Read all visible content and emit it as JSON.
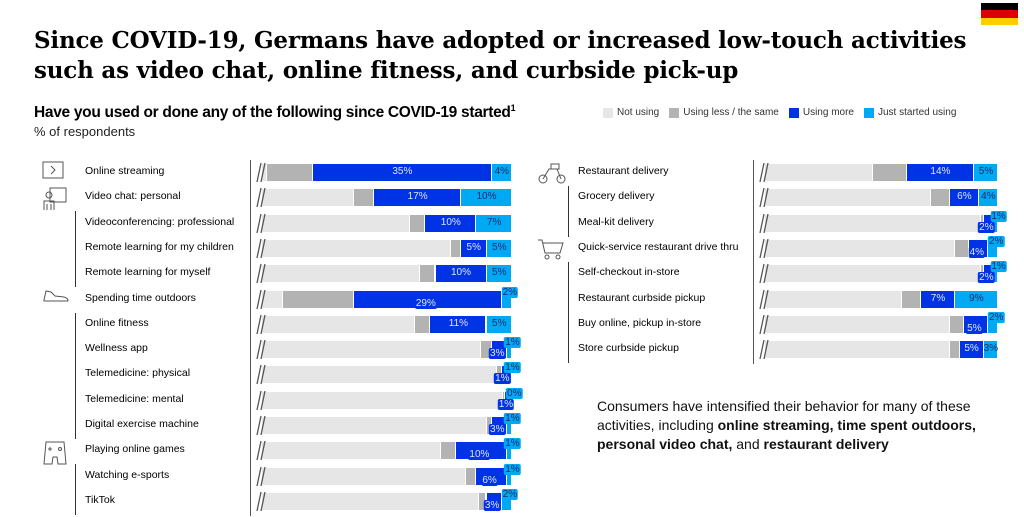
{
  "title": "Since COVID-19, Germans have adopted or increased low-touch activities such as video chat, online fitness, and curbside pick-up",
  "question": "Have you used or done any of the following since COVID-19 started",
  "question_footnote": "1",
  "unit": "% of respondents",
  "colors": {
    "not_using": "#e6e6e6",
    "less": "#b3b3b3",
    "more": "#0033e6",
    "just": "#00a9f4"
  },
  "legend": [
    {
      "key": "not_using",
      "label": "Not using"
    },
    {
      "key": "less",
      "label": "Using less / the same"
    },
    {
      "key": "more",
      "label": "Using more"
    },
    {
      "key": "just",
      "label": "Just started using"
    }
  ],
  "note": {
    "text": "Consumers have intensified their behavior for many of these activities, including ",
    "bold1": "online streaming, time spent outdoors, personal video chat,",
    "mid": " and ",
    "bold2": "restaurant delivery"
  },
  "chart_data": [
    {
      "type": "bar",
      "orientation": "horizontal-stacked",
      "series_keys": [
        "not_using",
        "less",
        "more",
        "just"
      ],
      "categories": [
        "Online streaming",
        "Video chat: personal",
        "Videoconferencing: professional",
        "Remote learning for my children",
        "Remote learning for myself",
        "Spending time outdoors",
        "Online fitness",
        "Wellness app",
        "Telemedicine: physical",
        "Telemedicine: mental",
        "Digital exercise machine",
        "Playing online games",
        "Watching e-sports",
        "TikTok"
      ],
      "more": [
        35,
        17,
        10,
        5,
        10,
        29,
        11,
        3,
        1,
        1,
        3,
        10,
        6,
        3
      ],
      "just": [
        4,
        10,
        7,
        5,
        5,
        2,
        5,
        1,
        1,
        0,
        1,
        1,
        1,
        2
      ],
      "less": [
        9,
        4,
        3,
        2,
        3,
        14,
        3,
        2,
        1,
        0.5,
        1,
        3,
        2,
        1.5
      ],
      "more_labels": [
        "35%",
        "17%",
        "10%",
        "5%",
        "10%",
        "29%",
        "11%",
        "3%",
        "1%",
        "1%",
        "3%",
        "10%",
        "6%",
        "3%"
      ],
      "just_labels": [
        "4%",
        "10%",
        "7%",
        "5%",
        "5%",
        "2%",
        "5%",
        "1%",
        "1%",
        "0%",
        "1%",
        "1%",
        "1%",
        "2%"
      ],
      "groups": [
        {
          "icon": "play-icon",
          "start": 0
        },
        {
          "icon": "video-chat-icon",
          "start": 1
        },
        {
          "icon": "sneaker-icon",
          "start": 5
        },
        {
          "icon": "gaming-icon",
          "start": 11
        }
      ]
    },
    {
      "type": "bar",
      "orientation": "horizontal-stacked",
      "series_keys": [
        "not_using",
        "less",
        "more",
        "just"
      ],
      "categories": [
        "Restaurant delivery",
        "Grocery delivery",
        "Meal-kit delivery",
        "Quick-service restaurant drive thru",
        "Self-checkout in-store",
        "Restaurant curbside pickup",
        "Buy online, pickup in-store",
        "Store curbside pickup"
      ],
      "more": [
        14,
        6,
        2,
        4,
        2,
        7,
        5,
        5
      ],
      "just": [
        5,
        4,
        1,
        2,
        1,
        9,
        2,
        3
      ],
      "less": [
        7,
        4,
        0.5,
        3,
        0.5,
        4,
        3,
        2
      ],
      "more_labels": [
        "14%",
        "6%",
        "2%",
        "4%",
        "2%",
        "7%",
        "5%",
        "5%"
      ],
      "just_labels": [
        "5%",
        "4%",
        "1%",
        "2%",
        "1%",
        "9%",
        "2%",
        "3%"
      ],
      "groups": [
        {
          "icon": "delivery-scooter-icon",
          "start": 0
        },
        {
          "icon": "shopping-cart-icon",
          "start": 3
        }
      ]
    }
  ]
}
